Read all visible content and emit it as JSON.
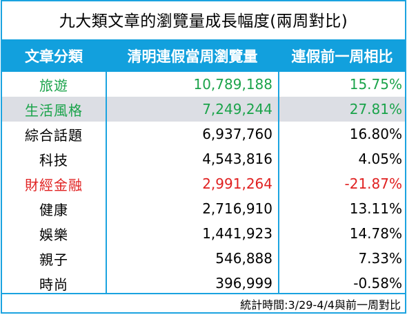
{
  "colors": {
    "border": "#1aa3e0",
    "header_bg": "#12a0dd",
    "highlight_green": "#1aa34a",
    "highlight_red": "#e02020",
    "shade": "#dcdee4"
  },
  "chart_data": {
    "type": "table",
    "title": "九大類文章的瀏覽量成長幅度(兩周對比)",
    "columns": [
      "文章分類",
      "清明連假當周瀏覽量",
      "連假前一周相比"
    ],
    "rows": [
      {
        "category": "旅遊",
        "views": "10,789,188",
        "change": "15.75%",
        "color": "green",
        "shade": false
      },
      {
        "category": "生活風格",
        "views": "7,249,244",
        "change": "27.81%",
        "color": "green",
        "shade": true
      },
      {
        "category": "綜合話題",
        "views": "6,937,760",
        "change": "16.80%",
        "color": "black",
        "shade": false
      },
      {
        "category": "科技",
        "views": "4,543,816",
        "change": "4.05%",
        "color": "black",
        "shade": false
      },
      {
        "category": "財經金融",
        "views": "2,991,264",
        "change": "-21.87%",
        "color": "red",
        "shade": false
      },
      {
        "category": "健康",
        "views": "2,716,910",
        "change": "13.11%",
        "color": "black",
        "shade": false
      },
      {
        "category": "娛樂",
        "views": "1,441,923",
        "change": "14.78%",
        "color": "black",
        "shade": false
      },
      {
        "category": "親子",
        "views": "546,888",
        "change": "7.33%",
        "color": "black",
        "shade": false
      },
      {
        "category": "時尚",
        "views": "396,999",
        "change": "-0.58%",
        "color": "black",
        "shade": false
      }
    ],
    "footnote": "統計時間:3/29-4/4與前一周對比"
  }
}
